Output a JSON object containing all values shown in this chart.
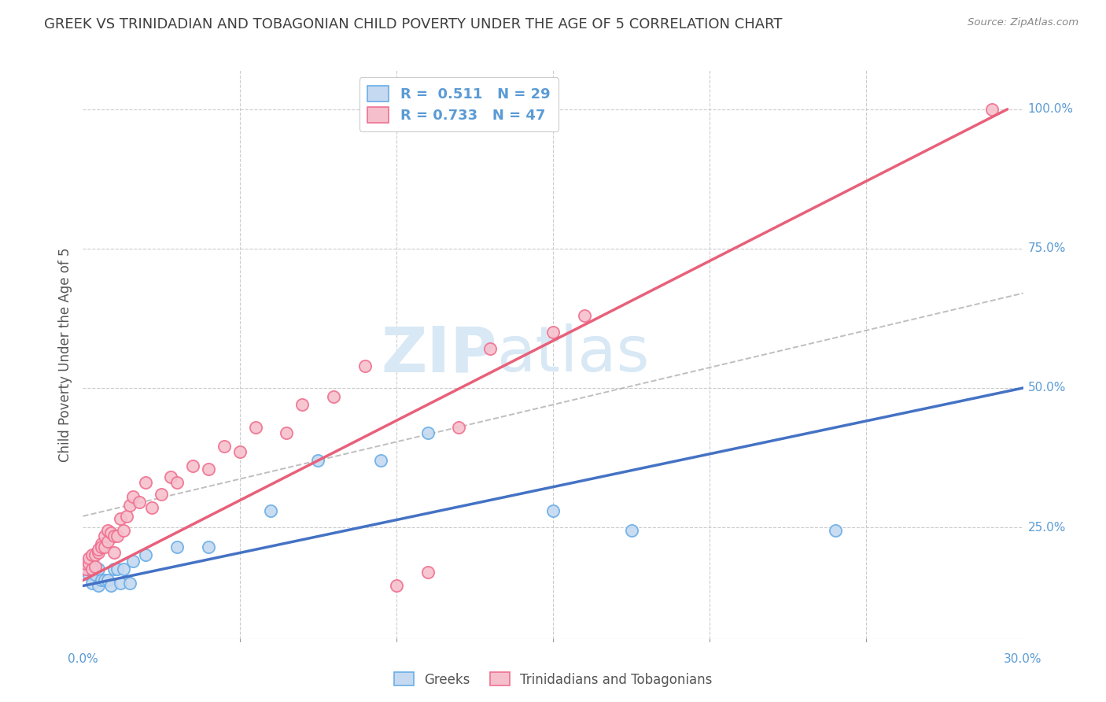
{
  "title": "GREEK VS TRINIDADIAN AND TOBAGONIAN CHILD POVERTY UNDER THE AGE OF 5 CORRELATION CHART",
  "source": "Source: ZipAtlas.com",
  "ylabel_label": "Child Poverty Under the Age of 5",
  "ylabel_ticks": [
    "100.0%",
    "75.0%",
    "50.0%",
    "25.0%"
  ],
  "legend_labels": [
    "Greeks",
    "Trinidadians and Tobagonians"
  ],
  "greek_R": "0.511",
  "greek_N": "29",
  "trini_R": "0.733",
  "trini_N": "47",
  "greek_color": "#c5d9f0",
  "trini_color": "#f5c0cc",
  "greek_edge_color": "#6aaee8",
  "trini_edge_color": "#f07090",
  "greek_line_color": "#4472c4",
  "trini_line_color": "#e8607a",
  "watermark_zip": "ZIP",
  "watermark_atlas": "atlas",
  "watermark_color": "#d8e8f5",
  "background_color": "#ffffff",
  "title_color": "#404040",
  "axis_value_color": "#5b9bd5",
  "greek_scatter_x": [
    0.001,
    0.001,
    0.002,
    0.002,
    0.003,
    0.003,
    0.004,
    0.005,
    0.005,
    0.006,
    0.007,
    0.008,
    0.009,
    0.01,
    0.011,
    0.012,
    0.013,
    0.015,
    0.016,
    0.02,
    0.03,
    0.04,
    0.06,
    0.075,
    0.095,
    0.11,
    0.15,
    0.175,
    0.24
  ],
  "greek_scatter_y": [
    0.185,
    0.175,
    0.165,
    0.175,
    0.15,
    0.185,
    0.165,
    0.175,
    0.145,
    0.155,
    0.155,
    0.155,
    0.145,
    0.175,
    0.175,
    0.15,
    0.175,
    0.15,
    0.19,
    0.2,
    0.215,
    0.215,
    0.28,
    0.37,
    0.37,
    0.42,
    0.28,
    0.245,
    0.245
  ],
  "trini_scatter_x": [
    0.001,
    0.001,
    0.002,
    0.002,
    0.003,
    0.003,
    0.004,
    0.004,
    0.005,
    0.005,
    0.006,
    0.006,
    0.007,
    0.007,
    0.008,
    0.008,
    0.009,
    0.01,
    0.01,
    0.011,
    0.012,
    0.013,
    0.014,
    0.015,
    0.016,
    0.018,
    0.02,
    0.022,
    0.025,
    0.028,
    0.03,
    0.035,
    0.04,
    0.045,
    0.05,
    0.055,
    0.065,
    0.07,
    0.08,
    0.09,
    0.1,
    0.11,
    0.12,
    0.13,
    0.15,
    0.16,
    0.29
  ],
  "trini_scatter_y": [
    0.175,
    0.185,
    0.185,
    0.195,
    0.2,
    0.175,
    0.2,
    0.18,
    0.205,
    0.21,
    0.22,
    0.215,
    0.215,
    0.235,
    0.225,
    0.245,
    0.24,
    0.235,
    0.205,
    0.235,
    0.265,
    0.245,
    0.27,
    0.29,
    0.305,
    0.295,
    0.33,
    0.285,
    0.31,
    0.34,
    0.33,
    0.36,
    0.355,
    0.395,
    0.385,
    0.43,
    0.42,
    0.47,
    0.485,
    0.54,
    0.145,
    0.17,
    0.43,
    0.57,
    0.6,
    0.63,
    1.0
  ],
  "xlim": [
    0.0,
    0.3
  ],
  "ylim": [
    0.05,
    1.07
  ],
  "greek_trend_x0": 0.0,
  "greek_trend_y0": 0.145,
  "greek_trend_x1": 0.3,
  "greek_trend_y1": 0.5,
  "trini_trend_x0": 0.0,
  "trini_trend_y0": 0.155,
  "trini_trend_x1": 0.295,
  "trini_trend_y1": 1.0,
  "ref_line_x0": 0.0,
  "ref_line_y0": 0.27,
  "ref_line_x1": 0.3,
  "ref_line_y1": 0.67,
  "scatter_size": 120,
  "scatter_linewidth": 1.3,
  "trend_linewidth": 2.5,
  "ref_linewidth": 1.4
}
